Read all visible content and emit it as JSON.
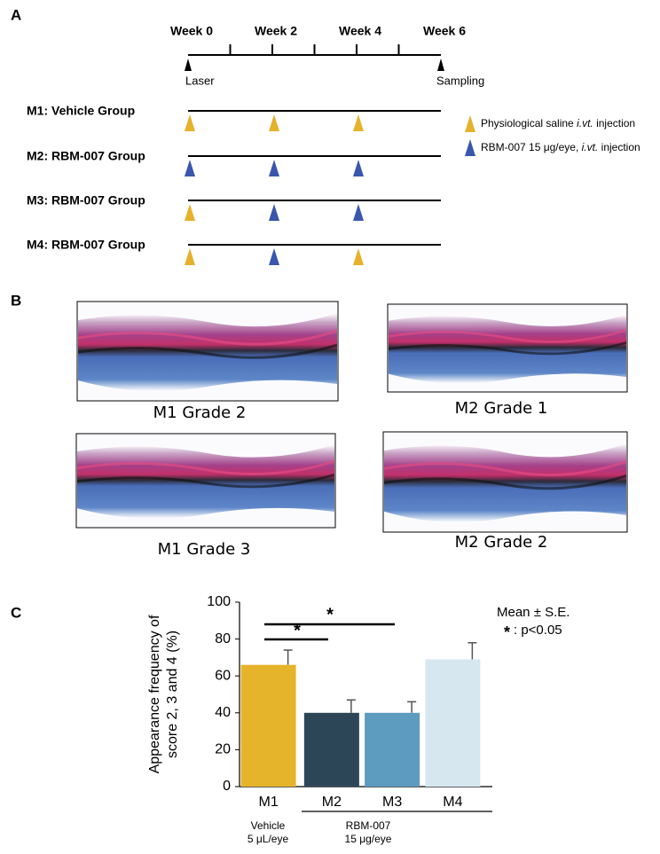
{
  "panel_labels": [
    "A",
    "B",
    "C"
  ],
  "panel_a": {
    "weeks": [
      "Week 0",
      "Week 2",
      "Week 4",
      "Week 6"
    ],
    "start_label": "Laser",
    "end_label": "Sampling",
    "groups": [
      {
        "label": "M1: Vehicle Group",
        "injections": [
          "#e6b22c",
          "#e6b22c",
          "#e6b22c"
        ]
      },
      {
        "label": "M2: RBM-007 Group",
        "injections": [
          "#3a56ad",
          "#3a56ad",
          "#3a56ad"
        ]
      },
      {
        "label": "M3: RBM-007 Group",
        "injections": [
          "#e6b22c",
          "#3a56ad",
          "#3a56ad"
        ]
      },
      {
        "label": "M4: RBM-007 Group",
        "injections": [
          "#e6b22c",
          "#3a56ad",
          "#e6b22c"
        ]
      }
    ],
    "legend": [
      {
        "color": "#e6b22c",
        "parts": [
          "Physiological saline ",
          "i.vt.",
          " injection"
        ]
      },
      {
        "color": "#3a56ad",
        "parts": [
          "RBM-007 15 μg/eye, ",
          "i.vt.",
          " injection"
        ]
      }
    ]
  },
  "panel_b": {
    "captions": [
      "M1 Grade 2",
      "M2 Grade 1",
      "M1 Grade 3",
      "M2 Grade 2"
    ]
  },
  "chart_data": {
    "type": "bar",
    "ylabel": [
      "Appearance frequency of",
      "score 2, 3 and 4 (%)"
    ],
    "categories": [
      "M1",
      "M2",
      "M3",
      "M4"
    ],
    "values": [
      66,
      40,
      40,
      69
    ],
    "errors": [
      8,
      7,
      6,
      9
    ],
    "colors": [
      "#e6b42a",
      "#2c4657",
      "#5d9cbf",
      "#d6e7f0"
    ],
    "ylim": [
      0,
      100
    ],
    "yticks": [
      0,
      20,
      40,
      60,
      80,
      100
    ],
    "groups": [
      [
        "Vehicle",
        "5 μL/eye"
      ],
      [
        "RBM-007",
        "15 μg/eye"
      ]
    ],
    "significance": [
      "*",
      "*"
    ],
    "stats_note": "Mean ± S.E.",
    "p_note": [
      "*",
      ": p<0.05"
    ]
  }
}
